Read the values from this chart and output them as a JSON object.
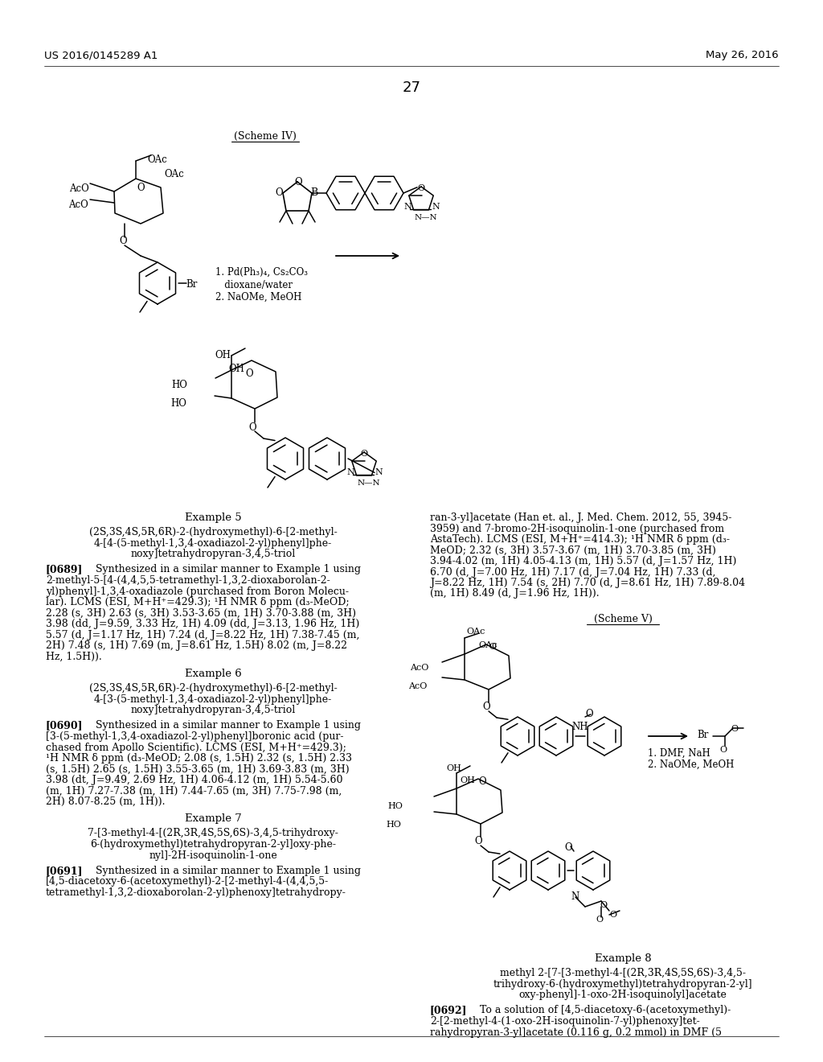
{
  "page_number": "27",
  "patent_number": "US 2016/0145289 A1",
  "patent_date": "May 26, 2016",
  "scheme_iv_label": "(Scheme IV)",
  "scheme_v_label": "(Scheme V)",
  "example5_title": "Example 5",
  "example5_compound_lines": [
    "(2S,3S,4S,5R,6R)-2-(hydroxymethyl)-6-[2-methyl-",
    "4-[4-(5-methyl-1,3,4-oxadiazol-2-yl)phenyl]phe-",
    "noxy]tetrahydropyran-3,4,5-triol"
  ],
  "example5_para": "[0689]    Synthesized in a similar manner to Example 1 using 2-methyl-5-[4-(4,4,5,5-tetramethyl-1,3,2-dioxaborolan-2-yl)phenyl]-1,3,4-oxadiazole (purchased from Boron Molecu-lar). LCMS (ESI, M+H⁺=429.3); ¹H NMR δ ppm (d₃-MeOD; 2.28 (s, 3H) 2.63 (s, 3H) 3.53-3.65 (m, 1H) 3.70-3.88 (m, 3H) 3.98 (dd, J=9.59, 3.33 Hz, 1H) 4.09 (dd, J=3.13, 1.96 Hz, 1H) 5.57 (d, J=1.17 Hz, 1H) 7.24 (d, J=8.22 Hz, 1H) 7.38-7.45 (m, 2H) 7.48 (s, 1H) 7.69 (m, J=8.61 Hz, 1.5H) 8.02 (m, J=8.22 Hz, 1.5H)).",
  "example6_title": "Example 6",
  "example6_compound_lines": [
    "(2S,3S,4S,5R,6R)-2-(hydroxymethyl)-6-[2-methyl-",
    "4-[3-(5-methyl-1,3,4-oxadiazol-2-yl)phenyl]phe-",
    "noxy]tetrahydropyran-3,4,5-triol"
  ],
  "example6_para": "[0690]    Synthesized in a similar manner to Example 1 using [3-(5-methyl-1,3,4-oxadiazol-2-yl)phenyl]boronic acid (pur-chased from Apollo Scientific). LCMS (ESI, M+H⁺=429.3); ¹H NMR δ ppm (d₃-MeOD; 2.08 (s, 1.5H) 2.32 (s, 1.5H) 2.33 (s, 1.5H) 2.65 (s, 1.5H) 3.55-3.65 (m, 1H) 3.69-3.83 (m, 3H) 3.98 (dt, J=9.49, 2.69 Hz, 1H) 4.06-4.12 (m, 1H) 5.54-5.60 (m, 1H) 7.27-7.38 (m, 1H) 7.44-7.65 (m, 3H) 7.75-7.98 (m, 2H) 8.07-8.25 (m, 1H)).",
  "example7_title": "Example 7",
  "example7_compound_lines": [
    "7-[3-methyl-4-[(2R,3R,4S,5S,6S)-3,4,5-trihydroxy-",
    "6-(hydroxymethyl)tetrahydropyran-2-yl]oxy-phe-",
    "nyl]-2H-isoquinolin-1-one"
  ],
  "example7_para_left": "[0691]    Synthesized in a similar manner to Example 1 using [4,5-diacetoxy-6-(acetoxymethyl)-2-[2-methyl-4-(4,4,5,5-tetramethyl-1,3,2-dioxaborolan-2-yl)phenoxy]tetrahydropy-",
  "example7_para_right": "ran-3-yl]acetate (Han et. al., J. Med. Chem. 2012, 55, 3945-3959) and 7-bromo-2H-isoquinolin-1-one (purchased from AstaTech). LCMS (ESI, M+H⁺=414.3); ¹H NMR δ ppm (d₃-MeOD; 2.32 (s, 3H) 3.57-3.67 (m, 1H) 3.70-3.85 (m, 3H) 3.94-4.02 (m, 1H) 4.05-4.13 (m, 1H) 5.57 (d, J=1.57 Hz, 1H) 6.70 (d, J=7.00 Hz, 1H) 7.17 (d, J=7.04 Hz, 1H) 7.33 (d, J=8.22 Hz, 1H) 7.54 (s, 2H) 7.70 (d, J=8.61 Hz, 1H) 7.89-8.04 (m, 1H) 8.49 (d, J=1.96 Hz, 1H)).",
  "example8_title": "Example 8",
  "example8_compound_lines": [
    "methyl 2-[7-[3-methyl-4-[(2R,3R,4S,5S,6S)-3,4,5-",
    "trihydroxy-6-(hydroxymethyl)tetrahydropyran-2-yl]",
    "oxy-phenyl]-1-oxo-2H-isoquinolyl]acetate"
  ],
  "example8_para": "[0692]    To a solution of [4,5-diacetoxy-6-(acetoxymethyl)-2-[2-methyl-4-(1-oxo-2H-isoquinolin-7-yl)phenoxy]tet-rahydropyran-3-yl]acetate (0.116 g, 0.2 mmol) in DMF (5"
}
